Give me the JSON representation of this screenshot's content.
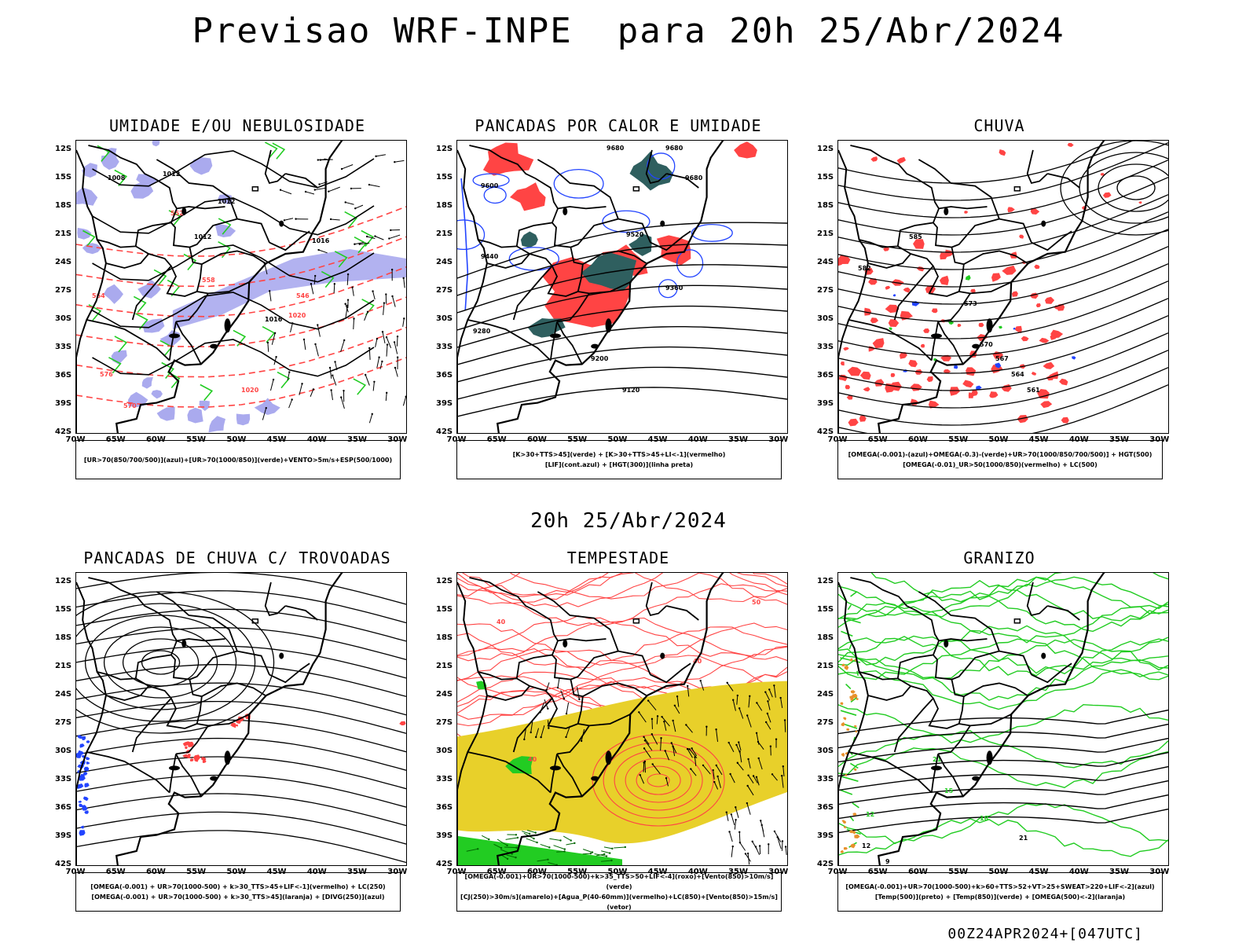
{
  "title": "Previsao WRF-INPE  para 20h 25/Abr/2024",
  "middle_title": "20h 25/Abr/2024",
  "footer": "00Z24APR2024+[047UTC]",
  "axes": {
    "lat_labels": [
      "12S",
      "15S",
      "18S",
      "21S",
      "24S",
      "27S",
      "30S",
      "33S",
      "36S",
      "39S",
      "42S"
    ],
    "lon_labels": [
      "70W",
      "65W",
      "60W",
      "55W",
      "50W",
      "45W",
      "40W",
      "35W",
      "30W"
    ]
  },
  "colors": {
    "green": "#22cc22",
    "red": "#ff4444",
    "blue": "#2244ff",
    "lavender": "#aaaaee",
    "teal": "#2f5f5f",
    "yellow": "#e8d02a",
    "orange": "#e8902a",
    "black": "#000000"
  },
  "panels": [
    {
      "id": "umidade",
      "title": "UMIDADE E/OU NEBULOSIDADE",
      "legend": [
        "[UR>70(850/700/500)](azul)+[UR>70(1000/850)](verde)+VENTO>5m/s+ESP(500/1000)"
      ],
      "contour_labels": [
        "1008",
        "1012",
        "1012",
        "1012",
        "1016",
        "1016",
        "1020",
        "1020",
        "552",
        "570",
        "576",
        "564",
        "558",
        "546"
      ]
    },
    {
      "id": "pancadas-calor",
      "title": "PANCADAS POR CALOR E UMIDADE",
      "legend": [
        "[K>30+TTS>45](verde) + [K>30+TTS>45+LI<-1](vermelho)",
        "[LIF](cont.azul) + [HGT(300)](linha preta)"
      ],
      "contour_labels": [
        "9680",
        "9680",
        "9680",
        "9600",
        "9520",
        "9440",
        "9360",
        "9280",
        "9200",
        "9120"
      ]
    },
    {
      "id": "chuva",
      "title": "CHUVA",
      "legend": [
        "[OMEGA(-0.001)-(azul)+OMEGA(-0.3)-(verde)+UR>70(1000/850/700/500)] + HGT(500)",
        "[OMEGA(-0.01)_UR>50(1000/850)(vermelho) + LC(500)"
      ],
      "contour_labels": [
        "582",
        "585",
        "573",
        "570",
        "567",
        "564",
        "561"
      ]
    },
    {
      "id": "pancadas-trovoadas",
      "title": "PANCADAS DE CHUVA C/ TROVOADAS",
      "legend": [
        "[OMEGA(-0.001) + UR>70(1000-500) + k>30_TTS>45+LIF<-1](vermelho) + LC(250)",
        "[OMEGA(-0.001) + UR>70(1000-500) + k>30_TTS>45](laranja) + [DIVG(250)](azul)"
      ],
      "contour_labels": []
    },
    {
      "id": "tempestade",
      "title": "TEMPESTADE",
      "legend": [
        "[OMEGA(-0.001)+UR>70(1000-500)+k>35_TTS>50+LIF<-4](roxo)+[Vento(850)>10m/s](verde)",
        "[CJ(250)>30m/s](amarelo)+[Agua_P(40-60mm)](vermelho)+LC(850)+[Vento(850)>15m/s](vetor)"
      ],
      "contour_labels": [
        "40",
        "40",
        "50",
        "40"
      ]
    },
    {
      "id": "granizo",
      "title": "GRANIZO",
      "legend": [
        "[OMEGA(-0.001)+UR>70(1000-500)+k>60+TTS>52+VT>25+SWEAT>220+LIF<-2](azul)",
        "[Temp(500)](preto) + [Temp(850)](verde) + [OMEGA(500)<-2](laranja)"
      ],
      "contour_labels": [
        "21",
        "15",
        "12",
        "18",
        "21",
        "12",
        "9"
      ]
    }
  ]
}
